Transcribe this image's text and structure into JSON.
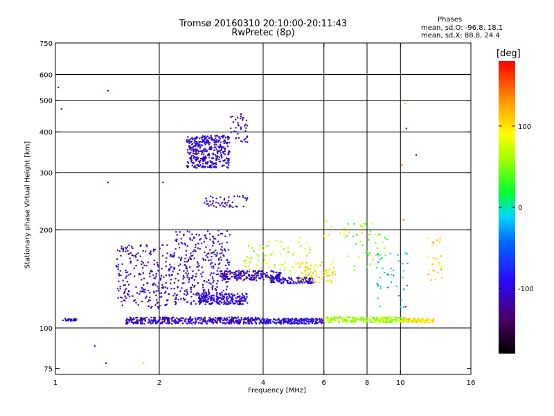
{
  "header": {
    "title_line1": "Tromsø 20160310 20:10:00-20:11:43",
    "title_line2": "RwPretec (8p)"
  },
  "stats": {
    "heading": "Phases",
    "line_o": "mean, sd,O: -96.8, 18.1",
    "line_x": "mean, sd,X: 88.8, 24.4"
  },
  "colorbar": {
    "label": "[deg]",
    "range": [
      -180,
      180
    ],
    "ticks": [
      "100",
      "0",
      "-100"
    ],
    "tick_values": [
      100,
      0,
      -100
    ]
  },
  "chart_data": {
    "type": "scatter",
    "xlabel": "Frequency [MHz]",
    "ylabel": "Stationary phase Virtual Height [km]",
    "xscale": "log",
    "yscale": "log",
    "xlim": [
      1,
      16
    ],
    "ylim": [
      72,
      750
    ],
    "xticks": [
      1,
      2,
      4,
      6,
      8,
      10,
      16
    ],
    "xtick_labels": [
      "1",
      "2",
      "4",
      "6",
      "8",
      "10",
      "16"
    ],
    "yticks": [
      75,
      100,
      200,
      300,
      400,
      500,
      600,
      750
    ],
    "ytick_labels": [
      "75",
      "100",
      "200",
      "300",
      "400",
      "500",
      "600",
      "750"
    ],
    "grid_x": [
      2,
      4,
      6,
      8,
      10
    ],
    "grid_y": [
      100,
      200,
      300,
      400,
      500,
      600
    ],
    "grid": true,
    "color_dimension": "phase [deg]",
    "clusters": [
      {
        "f": [
          1.05,
          1.15
        ],
        "h": [
          105,
          107
        ],
        "phase": -100,
        "n": 30
      },
      {
        "f": [
          1.6,
          3.9
        ],
        "h": [
          103,
          108
        ],
        "phase": -105,
        "n": 420
      },
      {
        "f": [
          3.9,
          6.0
        ],
        "h": [
          103,
          107
        ],
        "phase": -95,
        "n": 220
      },
      {
        "f": [
          6.0,
          10.5
        ],
        "h": [
          104,
          108
        ],
        "phase": 60,
        "n": 240
      },
      {
        "f": [
          10.0,
          12.5
        ],
        "h": [
          104,
          107
        ],
        "phase": 100,
        "n": 80
      },
      {
        "f": [
          1.5,
          2.2
        ],
        "h": [
          115,
          180
        ],
        "phase": -110,
        "n": 230
      },
      {
        "f": [
          2.2,
          3.2
        ],
        "h": [
          118,
          200
        ],
        "phase": -105,
        "n": 320
      },
      {
        "f": [
          2.6,
          3.6
        ],
        "h": [
          118,
          128
        ],
        "phase": -100,
        "n": 200
      },
      {
        "f": [
          3.0,
          4.5
        ],
        "h": [
          140,
          150
        ],
        "phase": -110,
        "n": 200
      },
      {
        "f": [
          4.2,
          5.6
        ],
        "h": [
          137,
          143
        ],
        "phase": -100,
        "n": 120
      },
      {
        "f": [
          5.0,
          6.5
        ],
        "h": [
          138,
          160
        ],
        "phase": 100,
        "n": 80
      },
      {
        "f": [
          3.5,
          5.5
        ],
        "h": [
          150,
          190
        ],
        "phase": 70,
        "n": 70
      },
      {
        "f": [
          2.4,
          3.2
        ],
        "h": [
          310,
          390
        ],
        "phase": -105,
        "n": 380
      },
      {
        "f": [
          2.7,
          3.6
        ],
        "h": [
          235,
          255
        ],
        "phase": -110,
        "n": 50
      },
      {
        "f": [
          3.2,
          3.6
        ],
        "h": [
          370,
          460
        ],
        "phase": -110,
        "n": 40
      },
      {
        "f": [
          7.0,
          9.2
        ],
        "h": [
          150,
          210
        ],
        "phase": 40,
        "n": 40
      },
      {
        "f": [
          8.5,
          10.5
        ],
        "h": [
          115,
          170
        ],
        "phase": -20,
        "n": 40
      },
      {
        "f": [
          6.0,
          8.5
        ],
        "h": [
          190,
          215
        ],
        "phase": 90,
        "n": 20
      },
      {
        "f": [
          12.0,
          13.2
        ],
        "h": [
          140,
          190
        ],
        "phase": 110,
        "n": 25
      }
    ],
    "isolated_points": [
      {
        "f": 1.04,
        "h": 470,
        "phase": -110
      },
      {
        "f": 1.02,
        "h": 548,
        "phase": -110
      },
      {
        "f": 1.42,
        "h": 535,
        "phase": -110
      },
      {
        "f": 1.42,
        "h": 280,
        "phase": -100
      },
      {
        "f": 1.4,
        "h": 78,
        "phase": -100
      },
      {
        "f": 1.3,
        "h": 88,
        "phase": -100
      },
      {
        "f": 1.8,
        "h": 78,
        "phase": 110
      },
      {
        "f": 2.05,
        "h": 280,
        "phase": -105
      },
      {
        "f": 10.3,
        "h": 490,
        "phase": 110
      },
      {
        "f": 10.4,
        "h": 410,
        "phase": -110
      },
      {
        "f": 10.1,
        "h": 317,
        "phase": 140
      },
      {
        "f": 11.1,
        "h": 340,
        "phase": -110
      },
      {
        "f": 10.2,
        "h": 215,
        "phase": 150
      }
    ]
  }
}
